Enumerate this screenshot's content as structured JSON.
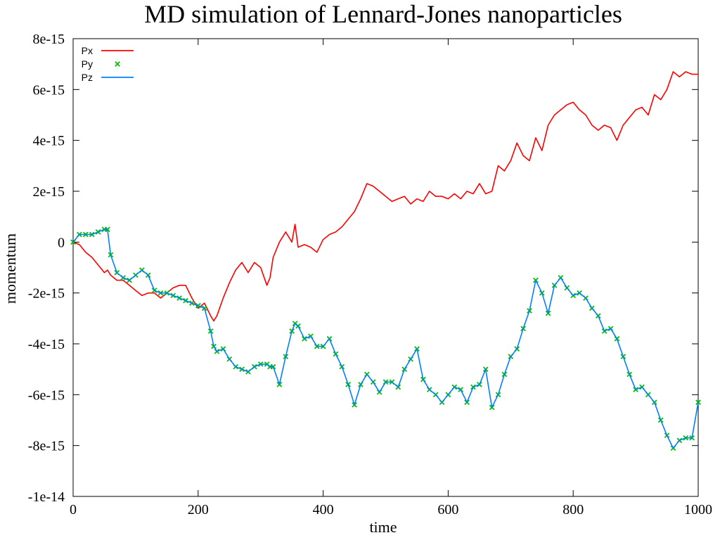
{
  "chart_data": {
    "type": "line",
    "title": "MD simulation of Lennard-Jones nanoparticles",
    "xlabel": "time",
    "ylabel": "momentum",
    "xlim": [
      0,
      1000
    ],
    "ylim": [
      -1e-14,
      8e-15
    ],
    "x_ticks": [
      0,
      200,
      400,
      600,
      800,
      1000
    ],
    "x_tick_labels": [
      "0",
      "200",
      "400",
      "600",
      "800",
      "1000"
    ],
    "y_ticks": [
      8e-15,
      6e-15,
      4e-15,
      2e-15,
      0,
      -2e-15,
      -4e-15,
      -6e-15,
      -8e-15,
      -1e-14
    ],
    "y_tick_labels": [
      "8e-15",
      "6e-15",
      "4e-15",
      "2e-15",
      "0",
      "-2e-15",
      "-4e-15",
      "-6e-15",
      "-8e-15",
      "-1e-14"
    ],
    "grid": false,
    "legend_position": "top-left",
    "series": [
      {
        "name": "Px",
        "style": "line",
        "color": "#ff0000",
        "x": [
          0,
          10,
          20,
          30,
          40,
          50,
          55,
          60,
          70,
          80,
          90,
          100,
          110,
          120,
          130,
          140,
          150,
          160,
          170,
          180,
          190,
          200,
          210,
          220,
          225,
          230,
          240,
          250,
          260,
          270,
          280,
          290,
          300,
          310,
          315,
          320,
          330,
          340,
          350,
          355,
          360,
          370,
          380,
          390,
          400,
          410,
          420,
          430,
          440,
          450,
          460,
          470,
          480,
          490,
          500,
          510,
          520,
          530,
          540,
          550,
          560,
          570,
          580,
          590,
          600,
          610,
          620,
          630,
          640,
          650,
          660,
          670,
          680,
          690,
          700,
          710,
          720,
          730,
          740,
          750,
          760,
          770,
          780,
          790,
          800,
          810,
          820,
          830,
          840,
          850,
          860,
          870,
          880,
          890,
          900,
          910,
          920,
          930,
          940,
          950,
          960,
          970,
          980,
          990,
          1000
        ],
        "values": [
          0,
          -1e-16,
          -4e-16,
          -6e-16,
          -9e-16,
          -1.2e-15,
          -1.1e-15,
          -1.3e-15,
          -1.5e-15,
          -1.5e-15,
          -1.7e-15,
          -1.9e-15,
          -2.1e-15,
          -2e-15,
          -2e-15,
          -2.2e-15,
          -2e-15,
          -1.8e-15,
          -1.7e-15,
          -1.7e-15,
          -2.2e-15,
          -2.6e-15,
          -2.4e-15,
          -2.9e-15,
          -3.1e-15,
          -2.9e-15,
          -2.2e-15,
          -1.6e-15,
          -1.1e-15,
          -8e-16,
          -1.2e-15,
          -8e-16,
          -1e-15,
          -1.7e-15,
          -1.4e-15,
          -6e-16,
          0,
          4e-16,
          0,
          7e-16,
          -2e-16,
          -1e-16,
          -2e-16,
          -4e-16,
          1e-16,
          3e-16,
          4e-16,
          6e-16,
          9e-16,
          1.2e-15,
          1.7e-15,
          2.3e-15,
          2.2e-15,
          2e-15,
          1.8e-15,
          1.6e-15,
          1.7e-15,
          1.8e-15,
          1.5e-15,
          1.7e-15,
          1.6e-15,
          2e-15,
          1.8e-15,
          1.8e-15,
          1.7e-15,
          1.9e-15,
          1.7e-15,
          2e-15,
          1.9e-15,
          2.3e-15,
          1.9e-15,
          2e-15,
          3e-15,
          2.8e-15,
          3.2e-15,
          3.9e-15,
          3.4e-15,
          3.2e-15,
          4.1e-15,
          3.6e-15,
          4.6e-15,
          5e-15,
          5.2e-15,
          5.4e-15,
          5.5e-15,
          5.2e-15,
          5e-15,
          4.6e-15,
          4.4e-15,
          4.6e-15,
          4.5e-15,
          4e-15,
          4.6e-15,
          4.9e-15,
          5.2e-15,
          5.3e-15,
          5e-15,
          5.8e-15,
          5.6e-15,
          6e-15,
          6.7e-15,
          6.5e-15,
          6.7e-15,
          6.6e-15,
          6.6e-15
        ]
      },
      {
        "name": "Py",
        "style": "points",
        "color": "#00c000",
        "x": [
          0,
          10,
          20,
          30,
          40,
          50,
          55,
          60,
          70,
          80,
          90,
          100,
          110,
          120,
          130,
          140,
          150,
          160,
          170,
          180,
          190,
          200,
          210,
          220,
          225,
          230,
          240,
          250,
          260,
          270,
          280,
          290,
          300,
          310,
          315,
          320,
          330,
          340,
          350,
          355,
          360,
          370,
          380,
          390,
          400,
          410,
          420,
          430,
          440,
          450,
          460,
          470,
          480,
          490,
          500,
          510,
          520,
          530,
          540,
          550,
          560,
          570,
          580,
          590,
          600,
          610,
          620,
          630,
          640,
          650,
          660,
          670,
          680,
          690,
          700,
          710,
          720,
          730,
          740,
          750,
          760,
          770,
          780,
          790,
          800,
          810,
          820,
          830,
          840,
          850,
          860,
          870,
          880,
          890,
          900,
          910,
          920,
          930,
          940,
          950,
          960,
          970,
          980,
          990,
          1000
        ],
        "values": [
          0,
          3e-16,
          3e-16,
          3e-16,
          4e-16,
          5e-16,
          5e-16,
          -5e-16,
          -1.2e-15,
          -1.4e-15,
          -1.5e-15,
          -1.3e-15,
          -1.1e-15,
          -1.3e-15,
          -1.9e-15,
          -2e-15,
          -2e-15,
          -2.1e-15,
          -2.2e-15,
          -2.3e-15,
          -2.4e-15,
          -2.5e-15,
          -2.6e-15,
          -3.5e-15,
          -4.1e-15,
          -4.3e-15,
          -4.2e-15,
          -4.6e-15,
          -4.9e-15,
          -5e-15,
          -5.1e-15,
          -4.9e-15,
          -4.8e-15,
          -4.8e-15,
          -4.9e-15,
          -4.9e-15,
          -5.6e-15,
          -4.5e-15,
          -3.5e-15,
          -3.2e-15,
          -3.3e-15,
          -3.8e-15,
          -3.7e-15,
          -4.1e-15,
          -4.1e-15,
          -3.8e-15,
          -4.4e-15,
          -4.9e-15,
          -5.6e-15,
          -6.4e-15,
          -5.6e-15,
          -5.2e-15,
          -5.5e-15,
          -5.9e-15,
          -5.5e-15,
          -5.5e-15,
          -5.7e-15,
          -5e-15,
          -4.6e-15,
          -4.2e-15,
          -5.4e-15,
          -5.8e-15,
          -6e-15,
          -6.3e-15,
          -6e-15,
          -5.7e-15,
          -5.8e-15,
          -6.3e-15,
          -5.7e-15,
          -5.6e-15,
          -5e-15,
          -6.5e-15,
          -6e-15,
          -5.2e-15,
          -4.5e-15,
          -4.2e-15,
          -3.4e-15,
          -2.7e-15,
          -1.5e-15,
          -2e-15,
          -2.8e-15,
          -1.7e-15,
          -1.4e-15,
          -1.8e-15,
          -2.1e-15,
          -2e-15,
          -2.2e-15,
          -2.6e-15,
          -2.9e-15,
          -3.5e-15,
          -3.4e-15,
          -3.8e-15,
          -4.5e-15,
          -5.2e-15,
          -5.8e-15,
          -5.7e-15,
          -6e-15,
          -6.3e-15,
          -7e-15,
          -7.6e-15,
          -8.1e-15,
          -7.8e-15,
          -7.7e-15,
          -7.7e-15,
          -6.3e-15
        ]
      },
      {
        "name": "Pz",
        "style": "line",
        "color": "#0080ff",
        "x": [
          0,
          10,
          20,
          30,
          40,
          50,
          55,
          60,
          70,
          80,
          90,
          100,
          110,
          120,
          130,
          140,
          150,
          160,
          170,
          180,
          190,
          200,
          210,
          220,
          225,
          230,
          240,
          250,
          260,
          270,
          280,
          290,
          300,
          310,
          315,
          320,
          330,
          340,
          350,
          355,
          360,
          370,
          380,
          390,
          400,
          410,
          420,
          430,
          440,
          450,
          460,
          470,
          480,
          490,
          500,
          510,
          520,
          530,
          540,
          550,
          560,
          570,
          580,
          590,
          600,
          610,
          620,
          630,
          640,
          650,
          660,
          670,
          680,
          690,
          700,
          710,
          720,
          730,
          740,
          750,
          760,
          770,
          780,
          790,
          800,
          810,
          820,
          830,
          840,
          850,
          860,
          870,
          880,
          890,
          900,
          910,
          920,
          930,
          940,
          950,
          960,
          970,
          980,
          990,
          1000
        ],
        "values": [
          0,
          3e-16,
          3e-16,
          3e-16,
          4e-16,
          5e-16,
          5e-16,
          -5e-16,
          -1.2e-15,
          -1.4e-15,
          -1.5e-15,
          -1.3e-15,
          -1.1e-15,
          -1.3e-15,
          -1.9e-15,
          -2e-15,
          -2e-15,
          -2.1e-15,
          -2.2e-15,
          -2.3e-15,
          -2.4e-15,
          -2.5e-15,
          -2.6e-15,
          -3.5e-15,
          -4.1e-15,
          -4.3e-15,
          -4.2e-15,
          -4.6e-15,
          -4.9e-15,
          -5e-15,
          -5.1e-15,
          -4.9e-15,
          -4.8e-15,
          -4.8e-15,
          -4.9e-15,
          -4.9e-15,
          -5.6e-15,
          -4.5e-15,
          -3.5e-15,
          -3.2e-15,
          -3.3e-15,
          -3.8e-15,
          -3.7e-15,
          -4.1e-15,
          -4.1e-15,
          -3.8e-15,
          -4.4e-15,
          -4.9e-15,
          -5.6e-15,
          -6.4e-15,
          -5.6e-15,
          -5.2e-15,
          -5.5e-15,
          -5.9e-15,
          -5.5e-15,
          -5.5e-15,
          -5.7e-15,
          -5e-15,
          -4.6e-15,
          -4.2e-15,
          -5.4e-15,
          -5.8e-15,
          -6e-15,
          -6.3e-15,
          -6e-15,
          -5.7e-15,
          -5.8e-15,
          -6.3e-15,
          -5.7e-15,
          -5.6e-15,
          -5e-15,
          -6.5e-15,
          -6e-15,
          -5.2e-15,
          -4.5e-15,
          -4.2e-15,
          -3.4e-15,
          -2.7e-15,
          -1.5e-15,
          -2e-15,
          -2.8e-15,
          -1.7e-15,
          -1.4e-15,
          -1.8e-15,
          -2.1e-15,
          -2e-15,
          -2.2e-15,
          -2.6e-15,
          -2.9e-15,
          -3.5e-15,
          -3.4e-15,
          -3.8e-15,
          -4.5e-15,
          -5.2e-15,
          -5.8e-15,
          -5.7e-15,
          -6e-15,
          -6.3e-15,
          -7e-15,
          -7.6e-15,
          -8.1e-15,
          -7.8e-15,
          -7.7e-15,
          -7.7e-15,
          -6.3e-15
        ]
      }
    ]
  }
}
